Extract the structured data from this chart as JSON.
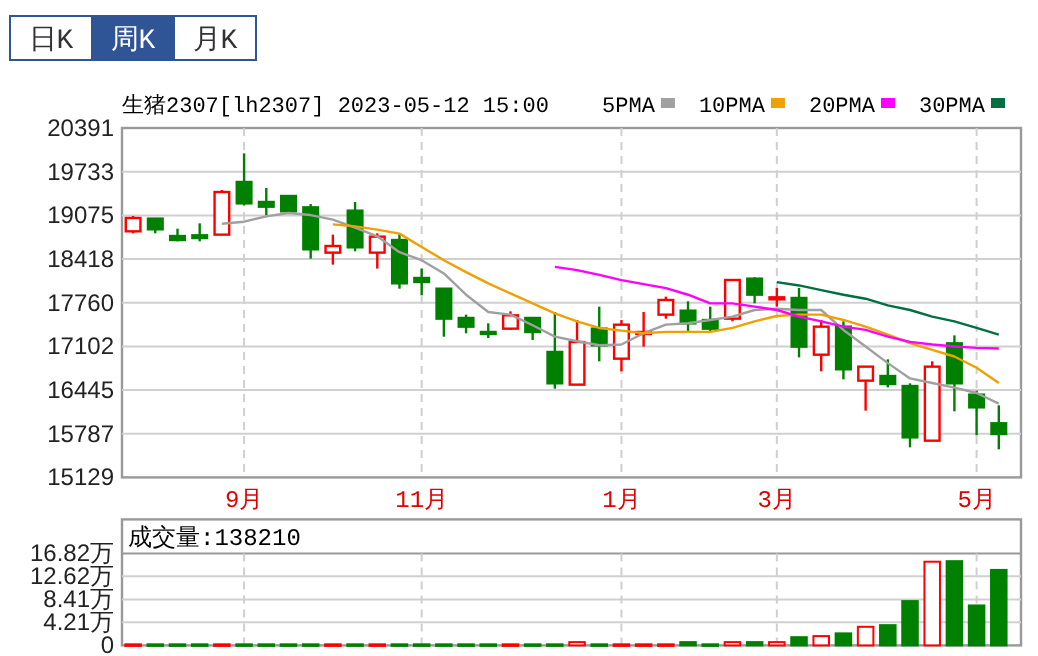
{
  "chart_data": [
    {
      "type": "candlestick",
      "title": "生猪2307[lh2307] 2023-05-12 15:00",
      "annotations": [
        "日K",
        "周K",
        "月K"
      ],
      "categories": [
        null,
        null,
        null,
        null,
        null,
        "9月",
        null,
        null,
        null,
        null,
        null,
        null,
        null,
        "11月",
        null,
        null,
        null,
        null,
        null,
        null,
        null,
        null,
        "1月",
        null,
        null,
        null,
        null,
        null,
        null,
        "3月",
        null,
        null,
        null,
        null,
        null,
        null,
        null,
        null,
        "5月",
        null
      ],
      "ohlc": [
        [
          18835,
          19066,
          18805,
          19036
        ],
        [
          19026,
          19026,
          18805,
          18865
        ],
        [
          18764,
          18875,
          18684,
          18704
        ],
        [
          18775,
          18955,
          18684,
          18734
        ],
        [
          18785,
          19457,
          18785,
          19427
        ],
        [
          19578,
          20009,
          19226,
          19256
        ],
        [
          19277,
          19487,
          19076,
          19206
        ],
        [
          19367,
          19367,
          19116,
          19136
        ],
        [
          19196,
          19246,
          18423,
          18564
        ],
        [
          18514,
          18785,
          18333,
          18614
        ],
        [
          19146,
          19277,
          18534,
          18594
        ],
        [
          18514,
          18805,
          18273,
          18755
        ],
        [
          18704,
          18805,
          17971,
          18052
        ],
        [
          18132,
          18273,
          17871,
          18072
        ],
        [
          17971,
          17971,
          17248,
          17520
        ],
        [
          17530,
          17580,
          17299,
          17399
        ],
        [
          17319,
          17449,
          17228,
          17289
        ],
        [
          17369,
          17630,
          17349,
          17570
        ],
        [
          17530,
          17530,
          17198,
          17319
        ],
        [
          17018,
          17620,
          16465,
          16546
        ],
        [
          16526,
          17499,
          16526,
          17168
        ],
        [
          17369,
          17700,
          16877,
          17118
        ],
        [
          16917,
          17499,
          16726,
          17429
        ],
        [
          17289,
          17620,
          17098,
          17319
        ],
        [
          17580,
          17851,
          17520,
          17801
        ],
        [
          17640,
          17781,
          17319,
          17449
        ],
        [
          17499,
          17700,
          17319,
          17369
        ],
        [
          17520,
          18102,
          17479,
          18102
        ],
        [
          18122,
          18142,
          17751,
          17881
        ],
        [
          17821,
          17982,
          17700,
          17841
        ],
        [
          17831,
          17982,
          16937,
          17098
        ],
        [
          16977,
          17499,
          16726,
          17399
        ],
        [
          17399,
          17479,
          16606,
          16757
        ],
        [
          16586,
          16797,
          16134,
          16797
        ],
        [
          16656,
          16907,
          16485,
          16536
        ],
        [
          16505,
          16546,
          15582,
          15732
        ],
        [
          15682,
          16877,
          15682,
          16797
        ],
        [
          17148,
          17268,
          16124,
          16546
        ],
        [
          16375,
          16435,
          15763,
          16184
        ],
        [
          15944,
          16214,
          15552,
          15783
        ]
      ],
      "series": [
        {
          "name": "5PMA",
          "type": "line",
          "color": "#a0a0a0",
          "values": [
            null,
            null,
            null,
            null,
            18950,
            18980,
            19060,
            19110,
            19080,
            19010,
            18890,
            18760,
            18520,
            18400,
            18200,
            17880,
            17620,
            17580,
            17420,
            17250,
            17180,
            17120,
            17130,
            17300,
            17430,
            17450,
            17500,
            17550,
            17650,
            17670,
            17650,
            17650,
            17350,
            17100,
            16850,
            16620,
            16550,
            16480,
            16400,
            16240
          ]
        },
        {
          "name": "10PMA",
          "type": "line",
          "color": "#f0a000",
          "values": [
            null,
            null,
            null,
            null,
            null,
            null,
            null,
            null,
            null,
            18940,
            18910,
            18860,
            18800,
            18600,
            18400,
            18220,
            18050,
            17900,
            17750,
            17600,
            17480,
            17380,
            17340,
            17300,
            17320,
            17320,
            17320,
            17380,
            17480,
            17560,
            17580,
            17580,
            17500,
            17400,
            17280,
            17150,
            17050,
            16950,
            16780,
            16550
          ]
        },
        {
          "name": "20PMA",
          "type": "line",
          "color": "#ff00ff",
          "values": [
            null,
            null,
            null,
            null,
            null,
            null,
            null,
            null,
            null,
            null,
            null,
            null,
            null,
            null,
            null,
            null,
            null,
            null,
            null,
            18300,
            18250,
            18180,
            18100,
            18040,
            17980,
            17880,
            17750,
            17750,
            17700,
            17650,
            17550,
            17480,
            17400,
            17350,
            17250,
            17170,
            17130,
            17100,
            17080,
            17070
          ]
        },
        {
          "name": "30PMA",
          "type": "line",
          "color": "#007040",
          "values": [
            null,
            null,
            null,
            null,
            null,
            null,
            null,
            null,
            null,
            null,
            null,
            null,
            null,
            null,
            null,
            null,
            null,
            null,
            null,
            null,
            null,
            null,
            null,
            null,
            null,
            null,
            null,
            null,
            null,
            18070,
            18020,
            17950,
            17880,
            17820,
            17720,
            17650,
            17550,
            17480,
            17380,
            17280
          ]
        }
      ],
      "ylim": [
        15129,
        20391
      ],
      "yticks": [
        15129,
        15787,
        16445,
        17102,
        17760,
        18418,
        19075,
        19733,
        20391
      ],
      "grid": true,
      "legend": "top right"
    },
    {
      "type": "bar",
      "title": "成交量:138210",
      "categories": [
        null,
        null,
        null,
        null,
        null,
        null,
        null,
        null,
        null,
        null,
        null,
        null,
        null,
        null,
        null,
        null,
        null,
        null,
        null,
        null,
        null,
        null,
        null,
        null,
        null,
        null,
        null,
        null,
        null,
        null,
        null,
        null,
        null,
        null,
        null,
        null,
        null,
        null,
        null,
        null
      ],
      "values": [
        0.2,
        0.2,
        0.2,
        0.2,
        0.2,
        0.2,
        0.2,
        0.2,
        0.2,
        0.2,
        0.2,
        0.2,
        0.2,
        0.2,
        0.2,
        0.2,
        0.2,
        0.2,
        0.2,
        0.2,
        0.6,
        0.2,
        0.2,
        0.2,
        0.2,
        0.6,
        0.2,
        0.6,
        0.6,
        0.6,
        1.5,
        1.7,
        2.2,
        3.4,
        3.7,
        8.1,
        15.3,
        15.4,
        7.3,
        13.8
      ],
      "colors": [
        "#ff0000",
        "#008000",
        "#008000",
        "#008000",
        "#ff0000",
        "#008000",
        "#008000",
        "#008000",
        "#008000",
        "#ff0000",
        "#008000",
        "#ff0000",
        "#008000",
        "#008000",
        "#008000",
        "#008000",
        "#008000",
        "#ff0000",
        "#008000",
        "#008000",
        "#ff0000",
        "#008000",
        "#ff0000",
        "#ff0000",
        "#ff0000",
        "#008000",
        "#008000",
        "#ff0000",
        "#008000",
        "#ff0000",
        "#008000",
        "#ff0000",
        "#008000",
        "#ff0000",
        "#008000",
        "#008000",
        "#ff0000",
        "#008000",
        "#008000",
        "#008000"
      ],
      "ylim": [
        0,
        16.82
      ],
      "yticks": [
        0,
        {
          "value": 4.21,
          "label": "4.21万"
        },
        {
          "value": 8.41,
          "label": "8.41万"
        },
        {
          "value": 12.62,
          "label": "12.62万"
        },
        {
          "value": 16.82,
          "label": "16.82万"
        }
      ],
      "grid": true,
      "tick_labels": "y"
    }
  ]
}
